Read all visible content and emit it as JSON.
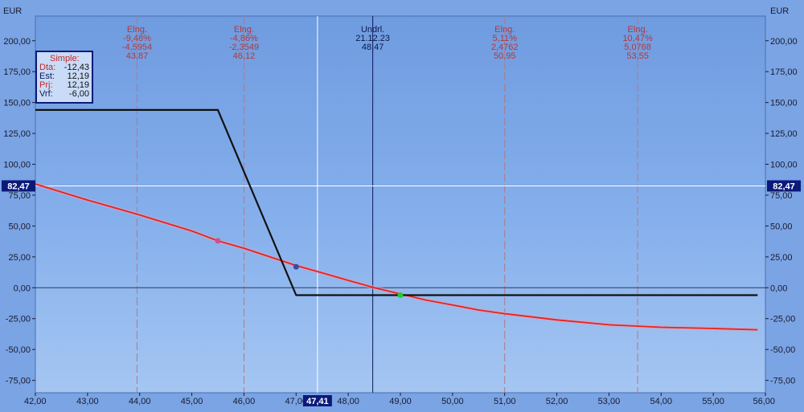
{
  "chart_data": {
    "type": "line",
    "y_unit_left": "EUR",
    "y_unit_right": "EUR",
    "xlim": [
      42,
      56
    ],
    "ylim": [
      -85,
      220
    ],
    "x_ticks": [
      "42,00",
      "43,00",
      "44,00",
      "45,00",
      "46,00",
      "47,00",
      "48,00",
      "49,00",
      "50,00",
      "51,00",
      "52,00",
      "53,00",
      "54,00",
      "55,00",
      "56,00"
    ],
    "x_tick_values": [
      42,
      43,
      44,
      45,
      46,
      47,
      48,
      49,
      50,
      51,
      52,
      53,
      54,
      55,
      56
    ],
    "y_ticks": [
      "200,00",
      "175,00",
      "150,00",
      "125,00",
      "100,00",
      "75,00",
      "50,00",
      "25,00",
      "0,00",
      "-25,00",
      "-50,00",
      "-75,00"
    ],
    "y_tick_values": [
      200,
      175,
      150,
      125,
      100,
      75,
      50,
      25,
      0,
      -25,
      -50,
      -75
    ],
    "series": [
      {
        "color": "#e8231b",
        "x": [
          42.0,
          43.0,
          44.0,
          45.0,
          45.5,
          46.0,
          46.5,
          47.0,
          47.5,
          48.0,
          48.5,
          49.0,
          49.5,
          50.0,
          50.5,
          51.0,
          52.0,
          53.0,
          54.0,
          55.0,
          55.85
        ],
        "y": [
          84,
          71,
          59,
          46,
          38,
          32,
          25,
          18,
          12,
          6,
          0,
          -5,
          -10,
          -14,
          -18,
          -21,
          -26,
          -30,
          -32,
          -33,
          -34
        ]
      },
      {
        "color": "#111111",
        "x": [
          42.0,
          45.5,
          47.0,
          55.85
        ],
        "y": [
          144,
          144,
          -6,
          -6
        ]
      }
    ],
    "points": [
      {
        "x": 45.5,
        "y": 38,
        "color": "#d0508a"
      },
      {
        "x": 47.0,
        "y": 17,
        "color": "#3a4aa8"
      },
      {
        "x": 49.0,
        "y": -6,
        "color": "#22cc33"
      }
    ],
    "vlines": [
      {
        "x": 43.95,
        "style": "dashed",
        "color": "#b07a88",
        "lines": [
          "Elng.",
          "-9,48%",
          "-4,5954",
          "43,87"
        ]
      },
      {
        "x": 46.0,
        "style": "dashed",
        "color": "#b07a88",
        "lines": [
          "Elng.",
          "-4,86%",
          "-2,3549",
          "46,12"
        ]
      },
      {
        "x": 48.47,
        "style": "solid",
        "color": "#0b1a5a",
        "lines": [
          "Undrl.",
          "21.12.23",
          "48,47"
        ]
      },
      {
        "x": 51.0,
        "style": "dashed",
        "color": "#b07a88",
        "lines": [
          "Elng.",
          "5,11%",
          "2,4762",
          "50,95"
        ]
      },
      {
        "x": 53.55,
        "style": "dashed",
        "color": "#b07a88",
        "lines": [
          "Elng.",
          "10,47%",
          "5,0768",
          "53,55"
        ]
      }
    ],
    "crosshair": {
      "x": 47.41,
      "y": 82.47,
      "x_label": "47,41",
      "y_label": "82,47"
    },
    "legend": {
      "title": "Simple:",
      "items": [
        {
          "key": "Dta:",
          "value": "-12,43",
          "color": "#c02a2a"
        },
        {
          "key": "Est:",
          "value": "12,19",
          "color": "#0b1a5a"
        },
        {
          "key": "Prj:",
          "value": "12,19",
          "color": "#c02a2a"
        },
        {
          "key": "Vrf:",
          "value": "-6,00",
          "color": "#0b1a5a"
        }
      ],
      "position": "top-left"
    }
  }
}
